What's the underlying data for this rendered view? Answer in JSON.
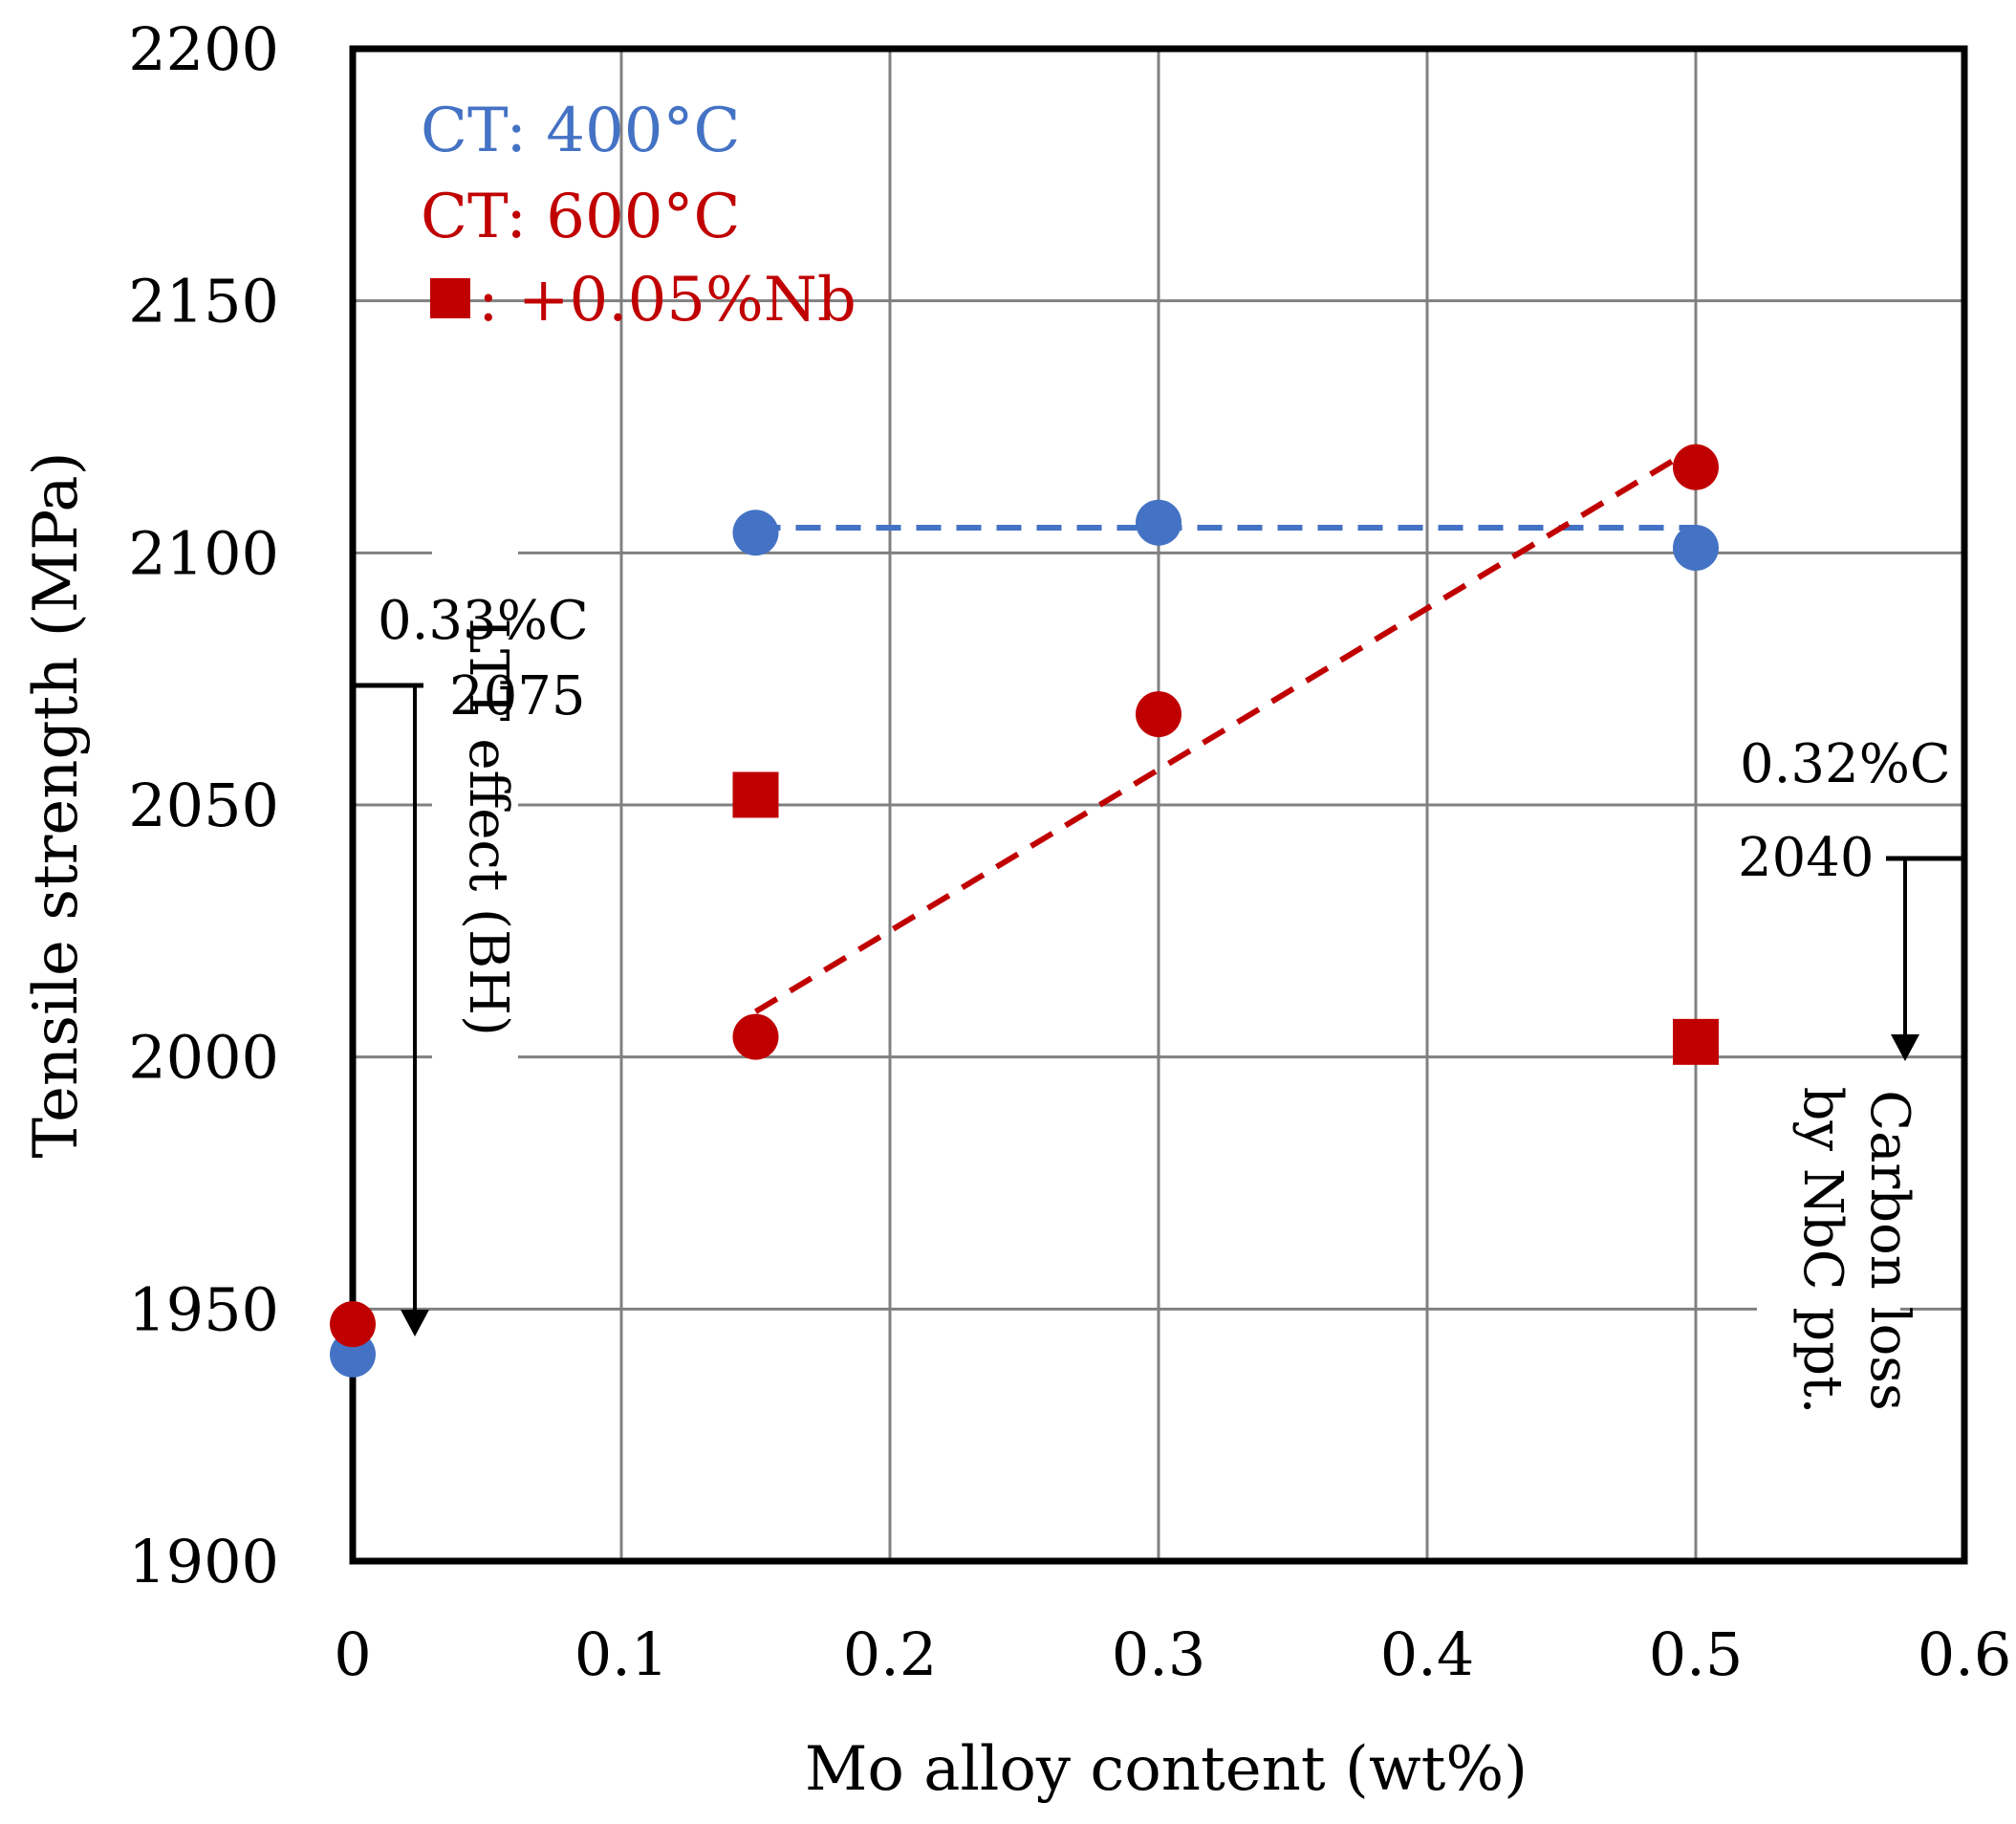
{
  "chart_data": {
    "type": "scatter",
    "title": "",
    "xlabel": "Mo  alloy content (wt%)",
    "ylabel": "Tensile strength (MPa)",
    "xlim": [
      0,
      0.6
    ],
    "ylim": [
      1900,
      2200
    ],
    "xticks": [
      0,
      0.1,
      0.2,
      0.3,
      0.4,
      0.5,
      0.6
    ],
    "xtick_labels": [
      "0",
      "0.1",
      "0.2",
      "0.3",
      "0.4",
      "0.5",
      "0.6"
    ],
    "yticks": [
      1900,
      1950,
      2000,
      2050,
      2100,
      2150,
      2200
    ],
    "ytick_labels": [
      "1900",
      "1950",
      "2000",
      "2050",
      "2100",
      "2150",
      "2200"
    ],
    "grid": true,
    "colors": {
      "blue": "#4472C4",
      "red": "#C00000",
      "grid": "#808080"
    },
    "series": [
      {
        "name": "CT: 400°C",
        "marker": "circle",
        "color": "#4472C4",
        "x": [
          0,
          0.15,
          0.3,
          0.5
        ],
        "y": [
          1941,
          2104,
          2106,
          2101
        ]
      },
      {
        "name": "CT: 600°C",
        "marker": "circle",
        "color": "#C00000",
        "x": [
          0,
          0.15,
          0.3,
          0.5
        ],
        "y": [
          1947,
          2004,
          2068,
          2117
        ]
      },
      {
        "name": "+0.05%Nb",
        "marker": "square",
        "color": "#C00000",
        "x": [
          0.15,
          0.5
        ],
        "y": [
          2052,
          2003
        ]
      }
    ],
    "trendlines": [
      {
        "color": "#4472C4",
        "x": [
          0.15,
          0.5
        ],
        "y": [
          2105,
          2105
        ]
      },
      {
        "color": "#C00000",
        "x": [
          0.15,
          0.5
        ],
        "y": [
          2009,
          2121
        ]
      }
    ],
    "legend": [
      {
        "text": "CT: 400°C",
        "color": "#4472C4"
      },
      {
        "text": "CT: 600°C",
        "color": "#C00000"
      },
      {
        "text": ": +0.05%Nb",
        "color": "#C00000",
        "marker": "square"
      }
    ],
    "annotations": {
      "left_carbon": "0.33%C",
      "left_value": "2075",
      "left_arrow_text": "LTT effect (BH)",
      "right_carbon": "0.32%C",
      "right_value": "2040",
      "right_arrow_text_1": "Carbon loss",
      "right_arrow_text_2": "by NbC ppt."
    }
  }
}
